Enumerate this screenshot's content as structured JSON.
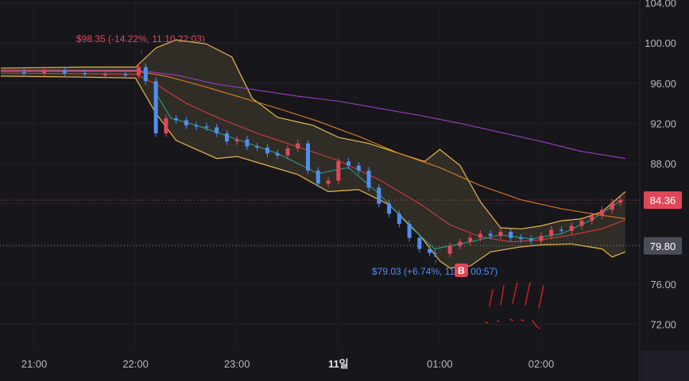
{
  "chart_data": {
    "type": "candlestick",
    "y_ticks": [
      "104.00",
      "100.00",
      "96.00",
      "92.00",
      "88.00",
      "84.00",
      "80.00",
      "76.00",
      "72.00"
    ],
    "y_tick_values": [
      104,
      100,
      96,
      92,
      88,
      84,
      80,
      76,
      72
    ],
    "ylim": [
      69,
      105
    ],
    "x_ticks": [
      "21:00",
      "22:00",
      "23:00",
      "11일",
      "01:00",
      "02:00"
    ],
    "x_tick_hours": [
      21,
      22,
      23,
      24,
      25,
      26
    ],
    "x_range_hours": [
      20.67,
      26.83
    ],
    "annotations": {
      "high": "$98.35 (-14.22%, 11.10 22:03)",
      "low": "$79.03 (+6.74%, 11.10 00:57)"
    },
    "price_labels": {
      "current": "84.36",
      "reference": "79.80"
    },
    "badge_text": "B",
    "colors": {
      "up": "#e0485a",
      "down": "#4f8ff0",
      "bollinger": "#e8b84a",
      "ma_fast": "#2e9a84",
      "ma_mid": "#d43b3b",
      "ma_slow": "#e07d20",
      "ma_long": "#9a3fc0",
      "current_tag": "#e0485a",
      "reference_tag": "#4a4d57"
    },
    "ohlc_close": [
      [
        20.67,
        97.1
      ],
      [
        20.9,
        97.0
      ],
      [
        21.1,
        97.3
      ],
      [
        21.3,
        97.0
      ],
      [
        21.5,
        96.9
      ],
      [
        21.7,
        96.9
      ],
      [
        21.9,
        96.8
      ],
      [
        22.03,
        97.6
      ],
      [
        22.1,
        96.2
      ],
      [
        22.2,
        91.0
      ],
      [
        22.3,
        92.5
      ],
      [
        22.4,
        92.3
      ],
      [
        22.5,
        91.8
      ],
      [
        22.6,
        91.7
      ],
      [
        22.7,
        91.6
      ],
      [
        22.8,
        91.0
      ],
      [
        22.9,
        90.2
      ],
      [
        23.0,
        90.4
      ],
      [
        23.1,
        89.7
      ],
      [
        23.2,
        89.6
      ],
      [
        23.3,
        89.0
      ],
      [
        23.4,
        88.8
      ],
      [
        23.5,
        89.5
      ],
      [
        23.6,
        90.0
      ],
      [
        23.7,
        87.3
      ],
      [
        23.8,
        86.0
      ],
      [
        23.9,
        86.3
      ],
      [
        24.0,
        88.2
      ],
      [
        24.1,
        87.8
      ],
      [
        24.2,
        87.3
      ],
      [
        24.3,
        85.6
      ],
      [
        24.4,
        84.0
      ],
      [
        24.5,
        83.0
      ],
      [
        24.6,
        82.0
      ],
      [
        24.7,
        80.6
      ],
      [
        24.8,
        79.5
      ],
      [
        24.9,
        79.1
      ],
      [
        24.95,
        79.03
      ],
      [
        25.1,
        79.8
      ],
      [
        25.2,
        80.2
      ],
      [
        25.3,
        80.6
      ],
      [
        25.4,
        81.0
      ],
      [
        25.5,
        80.8
      ],
      [
        25.6,
        81.2
      ],
      [
        25.7,
        80.6
      ],
      [
        25.8,
        80.5
      ],
      [
        25.9,
        80.3
      ],
      [
        26.0,
        80.8
      ],
      [
        26.1,
        81.4
      ],
      [
        26.2,
        81.3
      ],
      [
        26.3,
        81.8
      ],
      [
        26.4,
        82.3
      ],
      [
        26.5,
        82.8
      ],
      [
        26.6,
        83.4
      ],
      [
        26.7,
        84.1
      ],
      [
        26.78,
        84.36
      ]
    ],
    "bollinger_upper": [
      [
        20.67,
        97.5
      ],
      [
        21.5,
        97.6
      ],
      [
        22.0,
        97.6
      ],
      [
        22.2,
        99.5
      ],
      [
        22.4,
        100.3
      ],
      [
        22.7,
        99.9
      ],
      [
        22.95,
        98.6
      ],
      [
        23.15,
        94.5
      ],
      [
        23.4,
        92.6
      ],
      [
        23.75,
        91.8
      ],
      [
        24.0,
        90.6
      ],
      [
        24.3,
        90.0
      ],
      [
        24.6,
        89.0
      ],
      [
        24.85,
        88.2
      ],
      [
        25.0,
        89.4
      ],
      [
        25.2,
        87.8
      ],
      [
        25.4,
        84.2
      ],
      [
        25.6,
        81.6
      ],
      [
        25.8,
        81.5
      ],
      [
        26.0,
        81.8
      ],
      [
        26.2,
        82.3
      ],
      [
        26.4,
        82.5
      ],
      [
        26.6,
        83.2
      ],
      [
        26.83,
        85.2
      ]
    ],
    "bollinger_lower": [
      [
        20.67,
        96.7
      ],
      [
        21.5,
        96.6
      ],
      [
        22.0,
        96.5
      ],
      [
        22.2,
        93.0
      ],
      [
        22.4,
        90.3
      ],
      [
        22.6,
        89.4
      ],
      [
        22.8,
        88.5
      ],
      [
        23.0,
        88.7
      ],
      [
        23.3,
        87.8
      ],
      [
        23.6,
        86.9
      ],
      [
        23.9,
        85.2
      ],
      [
        24.2,
        85.4
      ],
      [
        24.5,
        83.9
      ],
      [
        24.8,
        80.9
      ],
      [
        25.0,
        78.3
      ],
      [
        25.1,
        77.6
      ],
      [
        25.3,
        77.8
      ],
      [
        25.5,
        79.2
      ],
      [
        25.8,
        79.7
      ],
      [
        26.0,
        79.9
      ],
      [
        26.3,
        80.0
      ],
      [
        26.6,
        79.5
      ],
      [
        26.7,
        78.7
      ],
      [
        26.83,
        79.2
      ]
    ],
    "ma_fast": [
      [
        22.2,
        95.0
      ],
      [
        22.35,
        92.5
      ],
      [
        22.6,
        91.8
      ],
      [
        23.0,
        90.4
      ],
      [
        23.4,
        89.0
      ],
      [
        23.8,
        87.0
      ],
      [
        24.1,
        87.6
      ],
      [
        24.4,
        85.0
      ],
      [
        24.7,
        81.8
      ],
      [
        24.95,
        79.5
      ],
      [
        25.3,
        80.2
      ],
      [
        25.6,
        80.9
      ],
      [
        25.9,
        80.5
      ],
      [
        26.2,
        81.0
      ],
      [
        26.5,
        82.4
      ],
      [
        26.8,
        84.4
      ]
    ],
    "ma_mid": [
      [
        20.67,
        97.0
      ],
      [
        22.0,
        96.9
      ],
      [
        22.2,
        95.9
      ],
      [
        22.5,
        94.0
      ],
      [
        22.8,
        92.6
      ],
      [
        23.2,
        91.0
      ],
      [
        23.5,
        90.0
      ],
      [
        24.0,
        88.3
      ],
      [
        24.4,
        86.4
      ],
      [
        24.8,
        84.0
      ],
      [
        25.1,
        81.9
      ],
      [
        25.4,
        80.7
      ],
      [
        25.7,
        80.2
      ],
      [
        26.0,
        80.4
      ],
      [
        26.3,
        80.9
      ],
      [
        26.6,
        81.5
      ],
      [
        26.83,
        82.4
      ]
    ],
    "ma_slow": [
      [
        20.67,
        97.2
      ],
      [
        22.0,
        97.2
      ],
      [
        22.3,
        96.7
      ],
      [
        22.7,
        95.6
      ],
      [
        23.0,
        94.7
      ],
      [
        23.4,
        93.5
      ],
      [
        23.8,
        92.2
      ],
      [
        24.2,
        90.7
      ],
      [
        24.6,
        89.0
      ],
      [
        25.0,
        87.6
      ],
      [
        25.4,
        85.8
      ],
      [
        25.8,
        84.4
      ],
      [
        26.2,
        83.5
      ],
      [
        26.5,
        83.0
      ],
      [
        26.83,
        82.5
      ]
    ],
    "ma_long": [
      [
        20.67,
        97.3
      ],
      [
        22.0,
        97.3
      ],
      [
        22.4,
        96.8
      ],
      [
        22.8,
        95.9
      ],
      [
        23.2,
        95.3
      ],
      [
        23.6,
        94.7
      ],
      [
        24.0,
        94.2
      ],
      [
        24.4,
        93.5
      ],
      [
        24.8,
        92.8
      ],
      [
        25.2,
        92.0
      ],
      [
        25.6,
        91.1
      ],
      [
        26.0,
        90.2
      ],
      [
        26.4,
        89.2
      ],
      [
        26.83,
        88.5
      ]
    ]
  }
}
